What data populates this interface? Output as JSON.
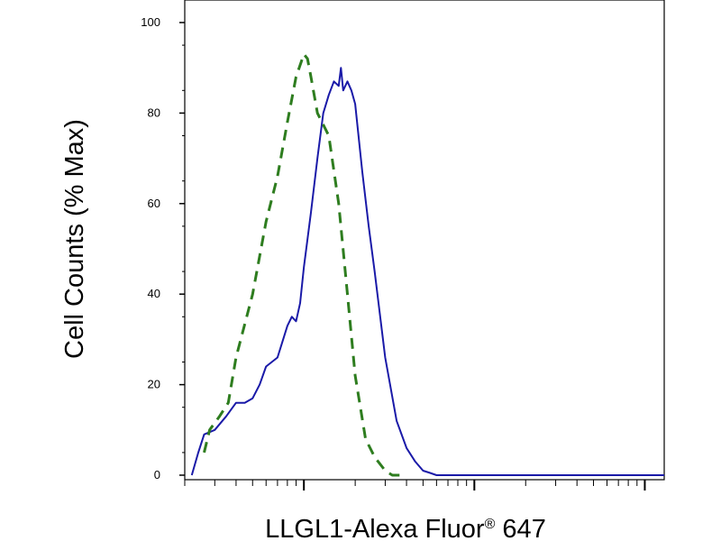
{
  "chart_data": {
    "type": "line",
    "title": "",
    "xlabel": "LLGL1-Alexa Fluor",
    "xlabel_superscript": "®",
    "xlabel_suffix": " 647",
    "ylabel": "Cell Counts (% Max)",
    "x_scale": "log",
    "xlim": [
      0.2,
      130
    ],
    "ylim": [
      0,
      100
    ],
    "y_ticks": [
      0,
      20,
      40,
      60,
      80,
      100
    ],
    "y_tick_labels": [
      "0",
      "20",
      "40",
      "60",
      "80",
      "100"
    ],
    "x_major_ticks": [
      1,
      10,
      100
    ],
    "grid": false,
    "legend": "none",
    "series": [
      {
        "color": "#1a1aa8",
        "dash": "solid",
        "x": [
          0.22,
          0.24,
          0.26,
          0.3,
          0.35,
          0.4,
          0.45,
          0.5,
          0.55,
          0.6,
          0.7,
          0.8,
          0.85,
          0.9,
          0.95,
          1.0,
          1.1,
          1.2,
          1.3,
          1.4,
          1.5,
          1.6,
          1.65,
          1.7,
          1.8,
          1.9,
          2.0,
          2.2,
          2.4,
          2.6,
          3.0,
          3.5,
          4.0,
          4.5,
          5.0,
          5.5,
          6.0,
          6.5,
          7.0,
          130
        ],
        "y": [
          0,
          5,
          9,
          10,
          13,
          16,
          16,
          17,
          20,
          24,
          26,
          33,
          35,
          34,
          38,
          46,
          58,
          70,
          80,
          84,
          87,
          86,
          90,
          85,
          87,
          85,
          82,
          67,
          55,
          45,
          26,
          12,
          6,
          3,
          1,
          0.5,
          0,
          0,
          0,
          0
        ]
      },
      {
        "color": "#2e7d1f",
        "dash": "dashed",
        "x": [
          0.26,
          0.28,
          0.32,
          0.36,
          0.4,
          0.5,
          0.6,
          0.7,
          0.8,
          0.9,
          1.0,
          1.05,
          1.1,
          1.2,
          1.4,
          1.6,
          1.8,
          2.0,
          2.3,
          2.6,
          3.0,
          3.3,
          3.6,
          4.0
        ],
        "y": [
          5,
          10,
          13,
          16,
          26,
          40,
          56,
          66,
          78,
          88,
          93,
          92,
          88,
          80,
          75,
          60,
          40,
          22,
          8,
          4,
          1,
          0,
          0,
          0
        ]
      }
    ]
  }
}
